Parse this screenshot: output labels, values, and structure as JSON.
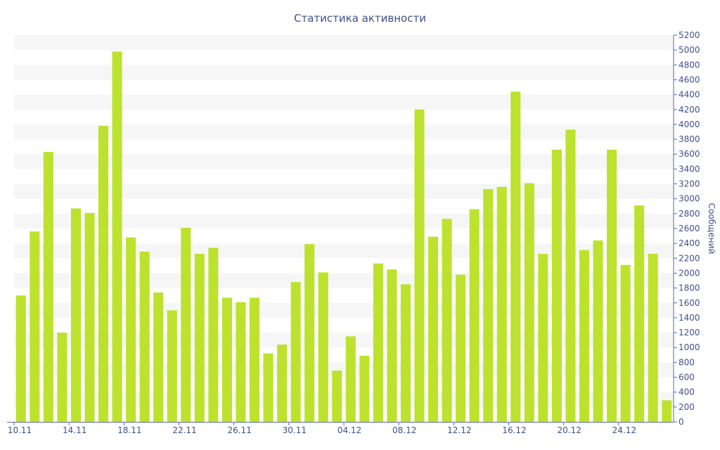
{
  "chart_data": {
    "type": "bar",
    "title": "Статистика активности",
    "ylabel": "Сообщений",
    "xlabel": "",
    "ylim": [
      0,
      5200
    ],
    "yticks": [
      0,
      200,
      400,
      600,
      800,
      1000,
      1200,
      1400,
      1600,
      1800,
      2000,
      2200,
      2400,
      2600,
      2800,
      3000,
      3200,
      3400,
      3600,
      3800,
      4000,
      4200,
      4400,
      4600,
      4800,
      5000,
      5200
    ],
    "y_axis_side": "right",
    "grid": "alternating-bands",
    "bar_color": "#bde22e",
    "x_tick_labels": [
      "10.11",
      "14.11",
      "18.11",
      "22.11",
      "26.11",
      "30.11",
      "04.12",
      "08.12",
      "12.12",
      "16.12",
      "20.12",
      "24.12"
    ],
    "x_tick_every": 4,
    "categories": [
      "10.11",
      "11.11",
      "12.11",
      "13.11",
      "14.11",
      "15.11",
      "16.11",
      "17.11",
      "18.11",
      "19.11",
      "20.11",
      "21.11",
      "22.11",
      "23.11",
      "24.11",
      "25.11",
      "26.11",
      "27.11",
      "28.11",
      "29.11",
      "30.11",
      "01.12",
      "02.12",
      "03.12",
      "04.12",
      "05.12",
      "06.12",
      "07.12",
      "08.12",
      "09.12",
      "10.12",
      "11.12",
      "12.12",
      "13.12",
      "14.12",
      "15.12",
      "16.12",
      "17.12",
      "18.12",
      "19.12",
      "20.12",
      "21.12",
      "22.12",
      "23.12",
      "24.12",
      "25.12",
      "26.12",
      "27.12"
    ],
    "values": [
      1700,
      2560,
      3630,
      1200,
      2870,
      2810,
      3980,
      4980,
      2480,
      2290,
      1740,
      1500,
      2610,
      2260,
      2340,
      1670,
      1610,
      1670,
      920,
      1040,
      1880,
      2390,
      2010,
      690,
      1150,
      890,
      2130,
      2050,
      1850,
      4200,
      2490,
      2730,
      1980,
      2860,
      3130,
      3160,
      4440,
      3210,
      2260,
      3660,
      3930,
      2310,
      2440,
      3660,
      2110,
      2910,
      2260,
      290
    ]
  }
}
